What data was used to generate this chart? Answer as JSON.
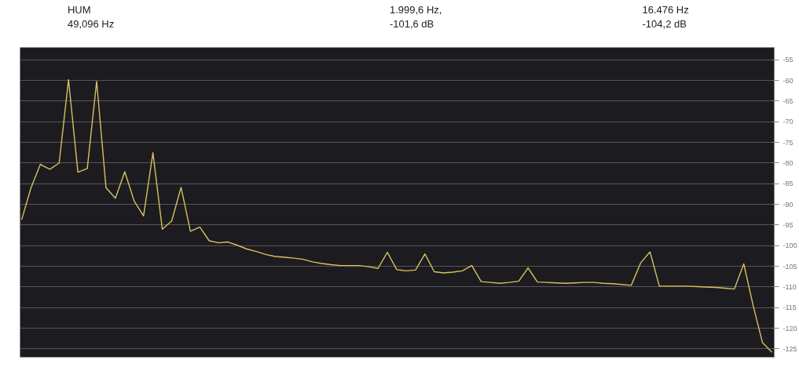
{
  "chart_data": {
    "type": "line",
    "ylim": [
      -127,
      -52
    ],
    "categories": [
      null,
      null,
      null,
      null,
      null,
      null,
      null,
      null,
      null,
      null,
      null,
      null,
      null,
      null,
      null,
      null,
      null,
      null,
      null,
      null,
      null,
      null,
      null,
      null,
      null,
      null,
      null,
      null,
      null,
      null,
      null,
      null,
      null,
      null,
      null,
      null,
      null,
      null,
      null,
      null,
      null,
      null,
      null,
      null,
      null,
      null,
      null,
      null,
      null,
      null,
      null,
      null,
      null,
      null,
      null,
      null,
      null,
      null,
      null,
      null,
      null,
      null,
      null,
      null,
      null,
      null,
      null,
      null,
      null,
      null,
      null,
      null,
      null,
      null,
      null,
      null,
      null,
      null,
      null,
      null,
      null
    ],
    "yticks": [
      -55,
      -60,
      -65,
      -70,
      -75,
      -80,
      -85,
      -90,
      -95,
      -100,
      -105,
      -110,
      -115,
      -120,
      -125
    ],
    "grid": "y",
    "tick_labels": "y",
    "series": [
      {
        "color": "#d8c060",
        "values": [
          -93.7,
          -86.0,
          -80.3,
          -81.5,
          -80.0,
          -59.8,
          -82.2,
          -81.3,
          -60.2,
          -86.0,
          -88.5,
          -82.1,
          -89.2,
          -92.8,
          -77.5,
          -96.0,
          -94.0,
          -85.9,
          -96.5,
          -95.5,
          -98.8,
          -99.3,
          -99.1,
          -99.9,
          -100.8,
          -101.4,
          -102.1,
          -102.6,
          -102.8,
          -103.0,
          -103.3,
          -103.9,
          -104.3,
          -104.6,
          -104.8,
          -104.8,
          -104.8,
          -105.1,
          -105.5,
          -101.6,
          -105.8,
          -106.1,
          -105.9,
          -102.0,
          -106.3,
          -106.6,
          -106.4,
          -106.1,
          -104.8,
          -108.7,
          -108.9,
          -109.1,
          -108.9,
          -108.6,
          -105.4,
          -108.8,
          -108.9,
          -109.0,
          -109.1,
          -109.0,
          -108.9,
          -108.9,
          -109.1,
          -109.2,
          -109.4,
          -109.6,
          -104.2,
          -101.5,
          -109.8,
          -109.8,
          -109.8,
          -109.8,
          -109.9,
          -110.0,
          -110.1,
          -110.3,
          -110.5,
          -104.4,
          -114.5,
          -123.5,
          -125.8
        ]
      }
    ],
    "annotations": [
      "HUM\n49,096 Hz",
      "1.999,6 Hz,\n-101,6 dB",
      "16.476 Hz\n-104,2 dB"
    ]
  }
}
